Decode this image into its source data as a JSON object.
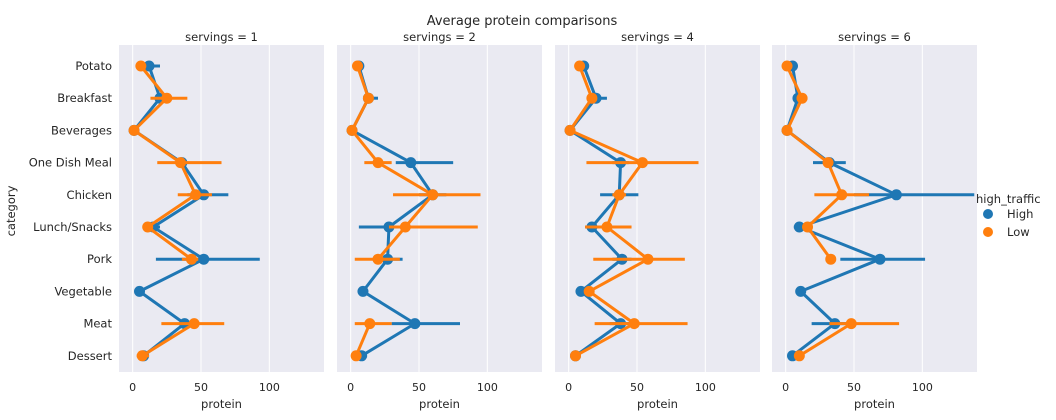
{
  "chart_data": {
    "type": "line",
    "title": "Average protein comparisons",
    "xlabel": "protein",
    "ylabel": "category",
    "xlim": [
      -10,
      140
    ],
    "xticks": [
      "0",
      "50",
      "100"
    ],
    "xtick_values": [
      0,
      50,
      100
    ],
    "grid": true,
    "categories": [
      "Potato",
      "Breakfast",
      "Beverages",
      "One Dish Meal",
      "Chicken",
      "Lunch/Snacks",
      "Pork",
      "Vegetable",
      "Meat",
      "Dessert"
    ],
    "legend": {
      "title": "high_traffic",
      "placement": "right",
      "entries": [
        {
          "label": "High",
          "color": "#1f77b4"
        },
        {
          "label": "Low",
          "color": "#ff7f0e"
        }
      ]
    },
    "panels": [
      {
        "title": "servings = 1",
        "series": [
          {
            "name": "High",
            "color": "#1f77b4",
            "values": [
              12,
              20,
              1,
              36,
              52,
              15,
              52,
              5,
              38,
              8
            ],
            "ci_low": [
              8,
              17,
              0.5,
              32,
              40,
              10,
              17,
              4,
              35,
              6
            ],
            "ci_high": [
              20,
              24,
              1.5,
              40,
              70,
              20,
              93,
              6,
              42,
              10
            ]
          },
          {
            "name": "Low",
            "color": "#ff7f0e",
            "values": [
              6,
              25,
              1,
              35,
              46,
              11,
              43,
              null,
              45,
              7
            ],
            "ci_low": [
              5,
              13,
              0.5,
              18,
              33,
              9,
              36,
              null,
              21,
              3
            ],
            "ci_high": [
              8,
              40,
              1.5,
              65,
              58,
              14,
              48,
              null,
              67,
              12
            ]
          }
        ]
      },
      {
        "title": "servings = 2",
        "series": [
          {
            "name": "High",
            "color": "#1f77b4",
            "values": [
              6,
              13,
              1,
              44,
              60,
              28,
              27,
              9,
              47,
              8
            ],
            "ci_low": [
              4,
              10,
              0.5,
              33,
              50,
              6,
              18,
              7,
              30,
              5
            ],
            "ci_high": [
              8,
              20,
              1.5,
              75,
              70,
              30,
              38,
              11,
              80,
              12
            ]
          },
          {
            "name": "Low",
            "color": "#ff7f0e",
            "values": [
              5,
              13,
              1,
              20,
              60,
              40,
              20,
              null,
              14,
              4
            ],
            "ci_low": [
              4,
              10,
              0.5,
              10,
              31,
              28,
              3,
              null,
              3,
              2
            ],
            "ci_high": [
              6,
              16,
              1.5,
              30,
              95,
              93,
              36,
              null,
              30,
              6
            ]
          }
        ]
      },
      {
        "title": "servings = 4",
        "series": [
          {
            "name": "High",
            "color": "#1f77b4",
            "values": [
              11,
              20,
              1,
              38,
              37,
              17,
              39,
              9,
              38,
              5
            ],
            "ci_low": [
              8,
              15,
              0.5,
              32,
              23,
              12,
              32,
              7,
              30,
              4
            ],
            "ci_high": [
              14,
              28,
              1.5,
              44,
              51,
              22,
              46,
              11,
              46,
              6
            ]
          },
          {
            "name": "Low",
            "color": "#ff7f0e",
            "values": [
              8,
              17,
              1,
              54,
              37,
              28,
              58,
              15,
              48,
              5
            ],
            "ci_low": [
              6,
              14,
              0.5,
              13,
              32,
              12,
              18,
              13,
              19,
              4
            ],
            "ci_high": [
              10,
              20,
              1.5,
              95,
              42,
              46,
              85,
              17,
              87,
              6
            ]
          }
        ]
      },
      {
        "title": "servings = 6",
        "series": [
          {
            "name": "High",
            "color": "#1f77b4",
            "values": [
              5,
              9,
              1,
              32,
              81,
              10,
              69,
              11,
              36,
              5
            ],
            "ci_low": [
              4,
              7,
              0.5,
              20,
              50,
              6,
              40,
              9,
              19,
              4
            ],
            "ci_high": [
              6,
              11,
              1.5,
              44,
              138,
              14,
              102,
              13,
              50,
              6
            ]
          },
          {
            "name": "Low",
            "color": "#ff7f0e",
            "values": [
              1,
              12,
              1,
              31,
              41,
              16,
              33,
              null,
              48,
              10
            ],
            "ci_low": [
              0.5,
              8,
              0.5,
              28,
              21,
              14,
              31,
              null,
              32,
              7
            ],
            "ci_high": [
              1.5,
              16,
              1.5,
              34,
              61,
              18,
              35,
              null,
              83,
              13
            ]
          }
        ]
      }
    ]
  }
}
